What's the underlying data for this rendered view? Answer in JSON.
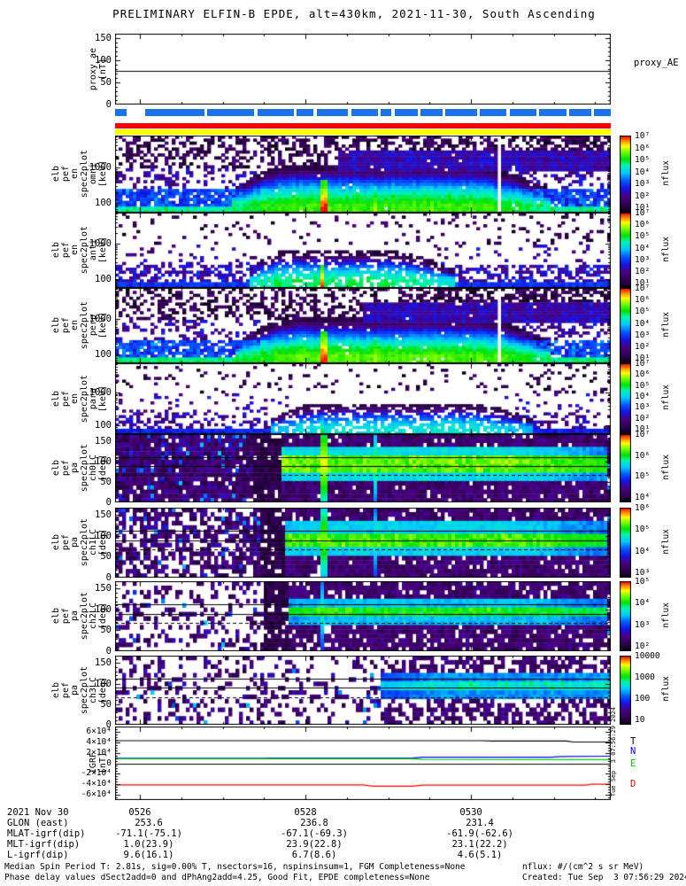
{
  "title": "PRELIMINARY ELFIN-B EPDE, alt=430km, 2021-11-30, South Ascending",
  "colors": {
    "avail_blue": "#1a73e8",
    "bar_red": "#ff0000",
    "bar_yellow": "#ffff00",
    "igrf_T": "#000000",
    "igrf_N": "#0000ff",
    "igrf_E": "#00cc00",
    "igrf_D": "#ff0000"
  },
  "chart_data": {
    "type": "spectrogram",
    "title": "PRELIMINARY ELFIN-B EPDE, alt=430km, 2021-11-30, South Ascending",
    "time_ticks": {
      "labels": [
        "0526",
        "0528",
        "0530"
      ],
      "fracs": [
        0.05,
        0.384,
        0.718
      ]
    },
    "proxy": {
      "label_lines": [
        "proxy_ae",
        "[nT]"
      ],
      "right_label": "proxy_AE",
      "tick_labels": [
        "150",
        "100",
        "50",
        "0"
      ],
      "tick_values": [
        150,
        100,
        50,
        0
      ],
      "y_max": 160,
      "line_value": 75
    },
    "availability_segments": [
      [
        0.0,
        0.023
      ],
      [
        0.06,
        0.18
      ],
      [
        0.186,
        0.28
      ],
      [
        0.287,
        0.36
      ],
      [
        0.366,
        0.4
      ],
      [
        0.407,
        0.47
      ],
      [
        0.476,
        0.53
      ],
      [
        0.536,
        0.558
      ],
      [
        0.565,
        0.61
      ],
      [
        0.616,
        0.66
      ],
      [
        0.666,
        0.73
      ],
      [
        0.736,
        0.79
      ],
      [
        0.796,
        0.85
      ],
      [
        0.856,
        0.91
      ],
      [
        0.916,
        0.96
      ],
      [
        0.966,
        1.0
      ]
    ],
    "panels": [
      {
        "id": "omni",
        "kind": "energy",
        "seed": 101,
        "label_lines": [
          "elb",
          "pef",
          "en",
          "spec2plot",
          "omni",
          "[keV]"
        ],
        "y_tick_labels": [
          "1000",
          "100"
        ],
        "y_tick_values": [
          1000,
          100
        ],
        "colorbar": {
          "labels": [
            "10⁷",
            "10⁶",
            "10⁵",
            "10⁴",
            "10³",
            "10²",
            "10¹"
          ],
          "title": "nflux"
        },
        "render": {
          "win": [
            0.22,
            0.36,
            0.7,
            0.9
          ],
          "topE0": 160,
          "topE": 800,
          "A0": 4.7,
          "Aenv": 0.6,
          "stripE": 85,
          "stripL": 4.8,
          "lowL": 2.9,
          "lowD": 0.85,
          "midD": 0.35,
          "hiD": 0.5,
          "rb": [
            0.45
          ],
          "hole": 0.02,
          "drops": [
            0.775
          ],
          "streaks": [
            {
              "x": 0.3,
              "w": 0.006,
              "amp": 5.1,
              "fall": 2.2,
              "emax": 260
            },
            {
              "x": 0.42,
              "w": 0.005,
              "amp": 6.9,
              "fall": 2.4,
              "emax": 420
            },
            {
              "x": 0.527,
              "w": 0.004,
              "amp": 6.1,
              "fall": 2.6,
              "emax": 300
            }
          ]
        }
      },
      {
        "id": "anti",
        "kind": "energy",
        "seed": 102,
        "label_lines": [
          "elb",
          "pef",
          "en",
          "spec2plot",
          "anti",
          "[keV]"
        ],
        "y_tick_labels": [
          "1000",
          "100"
        ],
        "y_tick_values": [
          1000,
          100
        ],
        "colorbar": {
          "labels": [
            "10⁷",
            "10⁶",
            "10⁵",
            "10⁴",
            "10³",
            "10²",
            "10¹"
          ],
          "title": "nflux"
        },
        "render": {
          "win": [
            0.26,
            0.34,
            0.55,
            0.7
          ],
          "topE0": 130,
          "topE": 430,
          "A0": 4.3,
          "Aenv": 0.5,
          "stripE": 80,
          "stripL": 3.2,
          "lowL": 2.2,
          "lowD": 0.55,
          "midD": 0.1,
          "hiD": 0.1,
          "rb": null,
          "hole": 0.28,
          "drops": [],
          "streaks": [
            {
              "x": 0.42,
              "w": 0.004,
              "amp": 6.6,
              "fall": 3.2,
              "emax": 260
            }
          ]
        }
      },
      {
        "id": "perp",
        "kind": "energy",
        "seed": 103,
        "label_lines": [
          "elb",
          "pef",
          "en",
          "spec2plot",
          "perp",
          "[keV]"
        ],
        "y_tick_labels": [
          "1000",
          "100"
        ],
        "y_tick_values": [
          1000,
          100
        ],
        "colorbar": {
          "labels": [
            "10⁷",
            "10⁶",
            "10⁵",
            "10⁴",
            "10³",
            "10²",
            "10¹"
          ],
          "title": "nflux"
        },
        "render": {
          "win": [
            0.23,
            0.37,
            0.72,
            0.9
          ],
          "topE0": 150,
          "topE": 750,
          "A0": 4.8,
          "Aenv": 0.6,
          "stripE": 85,
          "stripL": 4.9,
          "lowL": 2.9,
          "lowD": 0.8,
          "midD": 0.3,
          "hiD": 0.45,
          "rb": [
            0.5
          ],
          "hole": 0.02,
          "drops": [
            0.775
          ],
          "streaks": [
            {
              "x": 0.3,
              "w": 0.006,
              "amp": 5.2,
              "fall": 2.2,
              "emax": 260
            },
            {
              "x": 0.42,
              "w": 0.005,
              "amp": 7.0,
              "fall": 2.4,
              "emax": 420
            },
            {
              "x": 0.527,
              "w": 0.004,
              "amp": 6.2,
              "fall": 2.6,
              "emax": 300
            }
          ]
        }
      },
      {
        "id": "para",
        "kind": "energy",
        "seed": 104,
        "label_lines": [
          "elb",
          "pef",
          "en",
          "spec2plot",
          "para",
          "[keV]"
        ],
        "y_tick_labels": [
          "1000",
          "100"
        ],
        "y_tick_values": [
          1000,
          100
        ],
        "colorbar": {
          "labels": [
            "10⁷",
            "10⁶",
            "10⁵",
            "10⁴",
            "10³",
            "10²",
            "10¹"
          ],
          "title": "nflux"
        },
        "render": {
          "win": [
            0.3,
            0.42,
            0.7,
            0.86
          ],
          "topE0": 120,
          "topE": 340,
          "A0": 3.8,
          "Aenv": 0.5,
          "stripE": 75,
          "stripL": 3.0,
          "lowL": 2.0,
          "lowD": 0.35,
          "midD": 0.12,
          "hiD": 0.13,
          "rb": null,
          "hole": 0.3,
          "drops": [],
          "streaks": [
            {
              "x": 0.42,
              "w": 0.004,
              "amp": 5.0,
              "fall": 3.0,
              "emax": 200
            }
          ]
        }
      },
      {
        "id": "ch0LC",
        "kind": "pa",
        "seed": 105,
        "label_lines": [
          "elb",
          "pef",
          "pa",
          "spec2plot",
          "ch0LC",
          "[deg]"
        ],
        "y_tick_labels": [
          "150",
          "100",
          "50",
          "0"
        ],
        "y_tick_values": [
          150,
          100,
          50,
          0
        ],
        "lc_lines": {
          "solid": [
            90,
            112
          ],
          "dashed": [
            67
          ]
        },
        "colorbar": {
          "labels": [
            "10⁷",
            "10⁶",
            "10⁵",
            "10⁴"
          ],
          "title": "nflux"
        },
        "render": {
          "center": 95,
          "coreW": 22,
          "midW": 45,
          "coreT": 0.68,
          "midT": 0.42,
          "win": [
            0.27,
            0.34,
            0.8,
            1.02
          ],
          "dl": 0.93,
          "dr": 0.93,
          "outD": 0.92,
          "darkCols": [
            0.28,
            0.335
          ],
          "streaks": [
            {
              "x": 0.42,
              "w": 0.005,
              "t": 0.88
            },
            {
              "x": 0.527,
              "w": 0.004,
              "t": 0.72
            }
          ]
        }
      },
      {
        "id": "ch1LC",
        "kind": "pa",
        "seed": 106,
        "label_lines": [
          "elb",
          "pef",
          "pa",
          "spec2plot",
          "ch1LC",
          "[deg]"
        ],
        "y_tick_labels": [
          "150",
          "100",
          "50",
          "0"
        ],
        "y_tick_values": [
          150,
          100,
          50,
          0
        ],
        "lc_lines": {
          "solid": [
            90,
            112
          ],
          "dashed": [
            67
          ]
        },
        "colorbar": {
          "labels": [
            "10⁶",
            "10⁵",
            "10⁴",
            "10³"
          ],
          "title": "nflux"
        },
        "render": {
          "center": 93,
          "coreW": 16,
          "midW": 40,
          "coreT": 0.66,
          "midT": 0.4,
          "win": [
            0.28,
            0.36,
            0.8,
            1.02
          ],
          "dl": 0.6,
          "dr": 0.85,
          "outD": 0.88,
          "darkCols": [
            0.29,
            0.34
          ],
          "streaks": [
            {
              "x": 0.42,
              "w": 0.005,
              "t": 0.8
            },
            {
              "x": 0.527,
              "w": 0.004,
              "t": 0.65
            }
          ]
        }
      },
      {
        "id": "ch2LC",
        "kind": "pa",
        "seed": 107,
        "label_lines": [
          "elb",
          "pef",
          "pa",
          "spec2plot",
          "ch2LC",
          "[deg]"
        ],
        "y_tick_labels": [
          "150",
          "100",
          "50",
          "0"
        ],
        "y_tick_values": [
          150,
          100,
          50,
          0
        ],
        "lc_lines": {
          "solid": [
            90,
            112
          ],
          "dashed": [
            67
          ]
        },
        "colorbar": {
          "labels": [
            "10⁵",
            "10⁴",
            "10³",
            "10²"
          ],
          "title": "nflux"
        },
        "render": {
          "center": 95,
          "coreW": 13,
          "midW": 35,
          "coreT": 0.62,
          "midT": 0.38,
          "win": [
            0.3,
            0.42,
            0.82,
            1.02
          ],
          "dl": 0.3,
          "dr": 0.8,
          "outD": 0.85,
          "darkCols": [
            0.3,
            0.35
          ],
          "streaks": [
            {
              "x": 0.42,
              "w": 0.004,
              "t": 0.65
            }
          ]
        }
      },
      {
        "id": "ch3LC",
        "kind": "pa",
        "seed": 108,
        "label_lines": [
          "elb",
          "pef",
          "pa",
          "spec2plot",
          "ch3LC",
          "[deg]"
        ],
        "y_tick_labels": [
          "150",
          "100",
          "50",
          "0"
        ],
        "y_tick_values": [
          150,
          100,
          50,
          0
        ],
        "lc_lines": {
          "solid": [
            90,
            112
          ],
          "dashed": [
            67
          ]
        },
        "colorbar": {
          "labels": [
            "10000",
            "1000",
            "100",
            "10"
          ],
          "title": "nflux"
        },
        "render": {
          "center": 95,
          "coreW": 11,
          "midW": 28,
          "coreT": 0.5,
          "midT": 0.33,
          "win": [
            0.52,
            0.66,
            1.05,
            1.2
          ],
          "dl": 0.25,
          "dr": 0.25,
          "outD": 0.55,
          "darkCols": null,
          "streaks": []
        }
      }
    ],
    "igrf": {
      "label_lines": [
        "IGRF",
        "[nT]"
      ],
      "tick_labels": [
        "6×10⁴",
        "4×10⁴",
        "2×10⁴",
        "0",
        "-2×10⁴",
        "-4×10⁴",
        "-6×10⁴"
      ],
      "tick_values": [
        60000,
        40000,
        20000,
        0,
        -20000,
        -40000,
        -60000
      ],
      "y_range": 140000,
      "series": [
        {
          "name": "T",
          "color_key": "igrf_T",
          "label_dy": 0,
          "points": [
            [
              0,
              43000
            ],
            [
              0.74,
              43000
            ],
            [
              0.76,
              42500
            ],
            [
              0.91,
              42500
            ],
            [
              0.925,
              40500
            ],
            [
              1,
              40500
            ]
          ]
        },
        {
          "name": "N",
          "color_key": "igrf_N",
          "label_dy": -5,
          "points": [
            [
              0,
              9500
            ],
            [
              0.3,
              9700
            ],
            [
              0.31,
              10000
            ],
            [
              0.6,
              10000
            ],
            [
              0.62,
              11500
            ],
            [
              0.88,
              11500
            ],
            [
              0.9,
              13000
            ],
            [
              1,
              13500
            ]
          ]
        },
        {
          "name": "E",
          "color_key": "igrf_E",
          "label_dy": 5,
          "points": [
            [
              0,
              8500
            ],
            [
              0.6,
              8500
            ],
            [
              0.62,
              7500
            ],
            [
              0.97,
              7000
            ],
            [
              1,
              7000
            ]
          ]
        },
        {
          "name": "D",
          "color_key": "igrf_D",
          "label_dy": 0,
          "points": [
            [
              0,
              -41000
            ],
            [
              0.5,
              -41000
            ],
            [
              0.52,
              -43500
            ],
            [
              0.6,
              -43500
            ],
            [
              0.62,
              -41500
            ],
            [
              0.95,
              -41500
            ],
            [
              0.96,
              -40000
            ],
            [
              1,
              -40000
            ]
          ]
        }
      ]
    }
  },
  "bottom_table": {
    "rows": [
      {
        "header": "2021 Nov 30",
        "values": [
          "0526",
          "0528",
          "0530"
        ]
      },
      {
        "header": "GLON (east)",
        "values": [
          "253.6",
          "236.8",
          "231.4"
        ]
      },
      {
        "header": "MLAT-igrf(dip)",
        "values": [
          "-71.1(-75.1)",
          "-67.1(-69.3)",
          "-61.9(-62.6)"
        ]
      },
      {
        "header": "MLT-igrf(dip)",
        "values": [
          "1.0(23.9)",
          "23.9(22.8)",
          "23.1(22.2)"
        ]
      },
      {
        "header": "L-igrf(dip)",
        "values": [
          "9.6(16.1)",
          "6.7(8.6)",
          "4.6(5.1)"
        ]
      }
    ]
  },
  "footer": {
    "line1": "Median Spin Period T: 2.81s, sig=0.00% T, nsectors=16, nspinsinsum=1, FGM Completeness=None",
    "line2": "Phase delay values dSect2add=0 and dPhAng2add=4.25, Good Fit, EPDE completeness=None",
    "units": "nflux: #/(cm^2 s sr MeV)",
    "created": "Created: Tue Sep  3 07:56:29 2024",
    "created_vertical": "Tue Sep  3 07:56:29 2024"
  }
}
